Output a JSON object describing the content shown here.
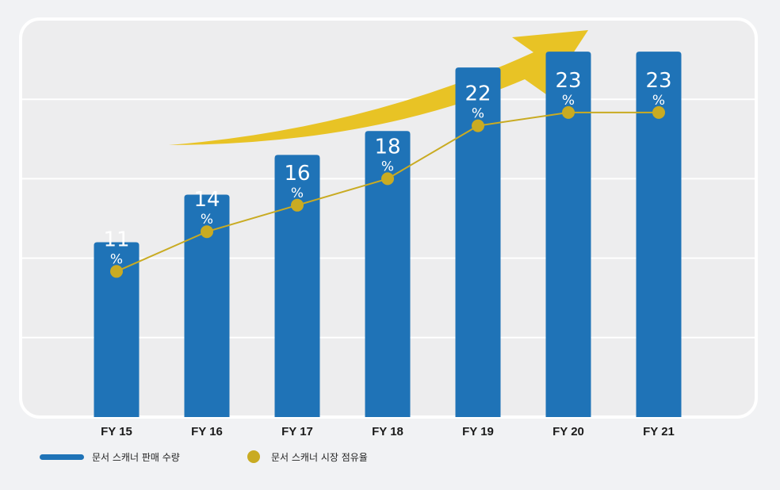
{
  "chart_data": {
    "type": "bar",
    "categories": [
      "FY 15",
      "FY 16",
      "FY 17",
      "FY 18",
      "FY 19",
      "FY 20",
      "FY 21"
    ],
    "series": [
      {
        "name": "문서 스캐너 판매 수량",
        "type": "bar",
        "values": [
          2.2,
          2.8,
          3.3,
          3.6,
          4.4,
          4.6,
          4.6
        ],
        "color": "#1f73b7"
      },
      {
        "name": "문서 스캐너 시장 점유율",
        "type": "line",
        "values": [
          11,
          14,
          16,
          18,
          22,
          23,
          23
        ],
        "labels": [
          "11",
          "14",
          "16",
          "18",
          "22",
          "23",
          "23"
        ],
        "unit": "%",
        "color": "#c9ab22"
      }
    ],
    "ylim": [
      0,
      5
    ],
    "line_ylim": [
      0,
      30
    ],
    "grid": true,
    "legend_position": "bottom-left",
    "trend_arrow_color": "#e8c325"
  }
}
